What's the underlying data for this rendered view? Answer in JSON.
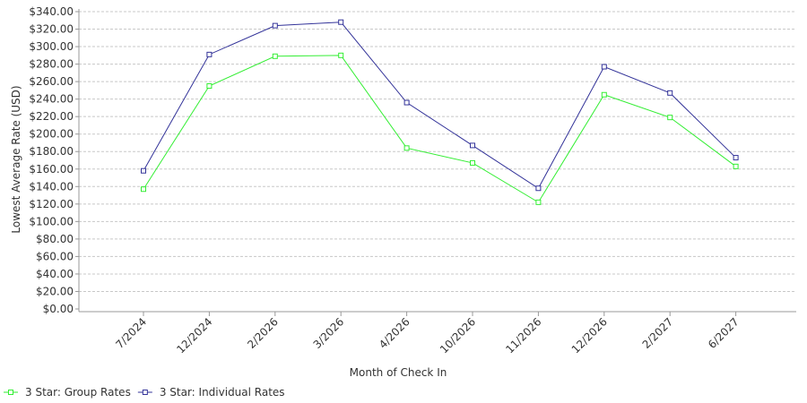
{
  "chart_data": {
    "type": "line",
    "title": "",
    "xlabel": "Month of Check In",
    "ylabel": "Lowest Average Rate (USD)",
    "categories": [
      "7/2024",
      "12/2024",
      "2/2026",
      "3/2026",
      "4/2026",
      "10/2026",
      "11/2026",
      "12/2026",
      "2/2027",
      "6/2027"
    ],
    "ylim": [
      0,
      340
    ],
    "yticks": [
      "$0.00",
      "$20.00",
      "$40.00",
      "$60.00",
      "$80.00",
      "$100.00",
      "$120.00",
      "$140.00",
      "$160.00",
      "$180.00",
      "$200.00",
      "$220.00",
      "$240.00",
      "$260.00",
      "$280.00",
      "$300.00",
      "$320.00",
      "$340.00"
    ],
    "grid": true,
    "legend": "bottom-left",
    "series": [
      {
        "name": "3 Star: Group Rates",
        "color": "#33ee33",
        "values": [
          137,
          255,
          289,
          290,
          184,
          167,
          122,
          245,
          219,
          163
        ]
      },
      {
        "name": "3 Star: Individual Rates",
        "color": "#333399",
        "values": [
          158,
          291,
          324,
          328,
          236,
          187,
          138,
          277,
          247,
          173
        ]
      }
    ]
  }
}
